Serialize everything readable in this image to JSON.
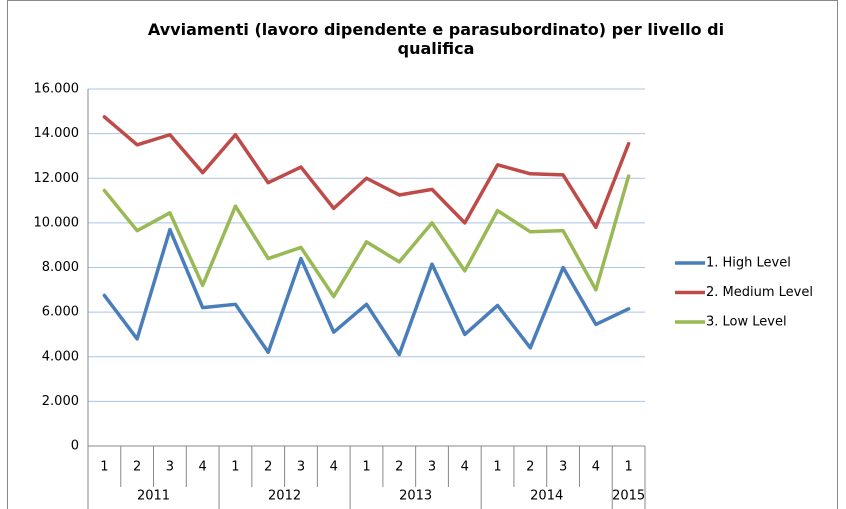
{
  "chart_data": {
    "type": "line",
    "title": "Avviamenti (lavoro dipendente e parasubordinato) per livello di qualifica",
    "groups": [
      {
        "label": "2011",
        "categories": [
          "1",
          "2",
          "3",
          "4"
        ]
      },
      {
        "label": "2012",
        "categories": [
          "1",
          "2",
          "3",
          "4"
        ]
      },
      {
        "label": "2013",
        "categories": [
          "1",
          "2",
          "3",
          "4"
        ]
      },
      {
        "label": "2014",
        "categories": [
          "1",
          "2",
          "3",
          "4"
        ]
      },
      {
        "label": "2015",
        "categories": [
          "1"
        ]
      }
    ],
    "series": [
      {
        "name": "1. High Level",
        "color": "#4a7ebb",
        "values": [
          6750,
          4800,
          9700,
          6200,
          6350,
          4200,
          8400,
          5100,
          6350,
          4100,
          8150,
          5000,
          6300,
          4400,
          8000,
          5450,
          6150
        ]
      },
      {
        "name": "2. Medium Level",
        "color": "#be4b48",
        "values": [
          14750,
          13500,
          13950,
          12250,
          13950,
          11800,
          12500,
          10650,
          12000,
          11250,
          11500,
          10000,
          12600,
          12200,
          12150,
          9800,
          13550
        ]
      },
      {
        "name": "3. Low Level",
        "color": "#98b954",
        "values": [
          11450,
          9650,
          10450,
          7200,
          10750,
          8400,
          8900,
          6700,
          9150,
          8250,
          10000,
          7850,
          10550,
          9600,
          9650,
          7000,
          12100
        ]
      }
    ],
    "ylim": [
      0,
      16000
    ],
    "yticks": [
      0,
      {
        "value": 2000,
        "label": "2.000"
      },
      {
        "value": 4000,
        "label": "4.000"
      },
      {
        "value": 6000,
        "label": "6.000"
      },
      {
        "value": 8000,
        "label": "8.000"
      },
      {
        "value": 10000,
        "label": "10.000"
      },
      {
        "value": 12000,
        "label": "12.000"
      },
      {
        "value": 14000,
        "label": "14.000"
      },
      {
        "value": 16000,
        "label": "16.000"
      }
    ],
    "grid": true,
    "legend": "right"
  }
}
